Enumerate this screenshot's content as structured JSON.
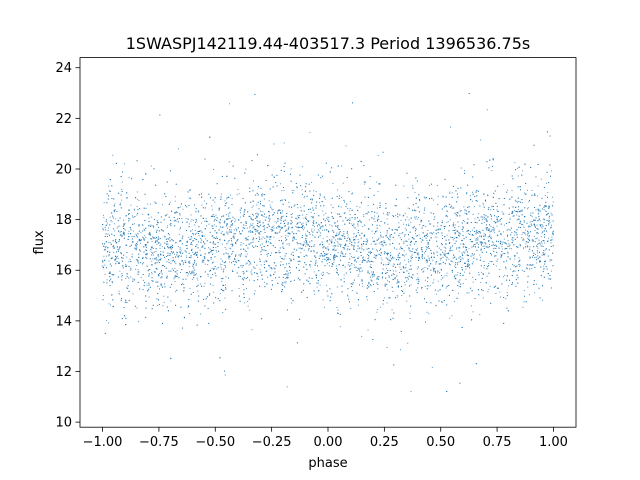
{
  "chart_data": {
    "type": "scatter",
    "title": "1SWASPJ142119.44-403517.3 Period 1396536.75s",
    "xlabel": "phase",
    "ylabel": "flux",
    "xlim": [
      -1.1,
      1.1
    ],
    "ylim": [
      9.8,
      24.4
    ],
    "xticks": [
      -1.0,
      -0.75,
      -0.5,
      -0.25,
      0.0,
      0.25,
      0.5,
      0.75,
      1.0
    ],
    "xtick_labels": [
      "−1.00",
      "−0.75",
      "−0.50",
      "−0.25",
      "0.00",
      "0.25",
      "0.50",
      "0.75",
      "1.00"
    ],
    "yticks": [
      10,
      12,
      14,
      16,
      18,
      20,
      22,
      24
    ],
    "ytick_labels": [
      "10",
      "12",
      "14",
      "16",
      "18",
      "20",
      "22",
      "24"
    ],
    "grid": false,
    "marker_color": "#1f77b4",
    "series": [
      {
        "x_range": [
          -1.0,
          1.0
        ],
        "central_flux_by_phase": {
          "x": [
            -1.0,
            -0.75,
            -0.5,
            -0.25,
            0.0,
            0.25,
            0.5,
            0.75,
            1.0
          ],
          "y": [
            17.0,
            16.8,
            17.0,
            17.4,
            17.2,
            16.6,
            17.0,
            17.3,
            17.3
          ]
        },
        "core_spread": [
          15.0,
          19.5
        ],
        "outlier_range": [
          10.3,
          23.7
        ]
      }
    ]
  }
}
